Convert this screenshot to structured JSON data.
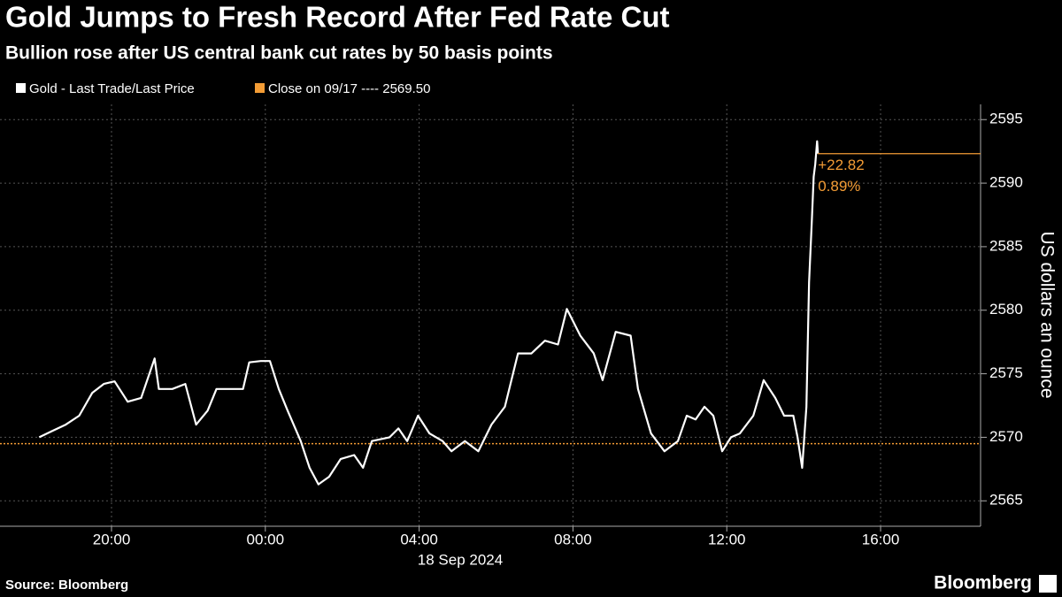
{
  "chart_data": {
    "type": "line",
    "title": "Gold Jumps to Fresh Record After Fed Rate Cut",
    "subtitle": "Bullion rose after US central bank cut rates by 50 basis points",
    "y_label": "US dollars an ounce",
    "x_label": "18 Sep 2024",
    "source": "Source: Bloomberg",
    "brand": "Bloomberg",
    "series": [
      {
        "name": "Gold - Last Trade/Last Price",
        "color": "#ffffff",
        "x": [
          -5.88,
          -5.54,
          -5.19,
          -4.84,
          -4.5,
          -4.2,
          -3.92,
          -3.58,
          -3.23,
          -2.88,
          -2.77,
          -2.42,
          -2.08,
          -1.8,
          -1.5,
          -1.27,
          -0.92,
          -0.58,
          -0.42,
          -0.12,
          0.12,
          0.35,
          0.58,
          0.92,
          1.15,
          1.38,
          1.66,
          1.96,
          2.31,
          2.54,
          2.77,
          3.23,
          3.46,
          3.69,
          3.97,
          4.27,
          4.61,
          4.84,
          5.19,
          5.54,
          5.88,
          6.23,
          6.57,
          6.92,
          7.27,
          7.61,
          7.84,
          8.19,
          8.54,
          8.77,
          9.11,
          9.5,
          9.69,
          10.03,
          10.38,
          10.73,
          10.96,
          11.19,
          11.42,
          11.65,
          11.88,
          12.11,
          12.34,
          12.69,
          12.96,
          13.26,
          13.49,
          13.73,
          13.84,
          13.96,
          14.07,
          14.14,
          14.21,
          14.26,
          14.3,
          14.35,
          14.37
        ],
        "values": [
          2570.0,
          2570.5,
          2571.0,
          2571.7,
          2573.5,
          2574.2,
          2574.4,
          2572.8,
          2573.1,
          2576.2,
          2573.8,
          2573.8,
          2574.2,
          2571.0,
          2572.1,
          2573.8,
          2573.8,
          2573.8,
          2575.9,
          2576.0,
          2576.0,
          2573.8,
          2572.1,
          2569.7,
          2567.6,
          2566.3,
          2566.9,
          2568.3,
          2568.6,
          2567.6,
          2569.7,
          2570.0,
          2570.7,
          2569.7,
          2571.7,
          2570.3,
          2569.7,
          2568.9,
          2569.7,
          2568.9,
          2571.0,
          2572.4,
          2576.6,
          2576.6,
          2577.6,
          2577.3,
          2580.1,
          2578.0,
          2576.6,
          2574.5,
          2578.3,
          2578.0,
          2573.8,
          2570.3,
          2568.9,
          2569.7,
          2571.7,
          2571.4,
          2572.4,
          2571.7,
          2568.9,
          2570.0,
          2570.3,
          2571.7,
          2574.5,
          2573.1,
          2571.7,
          2571.7,
          2570.0,
          2567.6,
          2572.4,
          2582.2,
          2587.0,
          2590.5,
          2591.5,
          2593.3,
          2592.32
        ]
      },
      {
        "name": "Close on 09/17 ---- 2569.50",
        "color": "#f39c35",
        "value": 2569.5
      }
    ],
    "annotations": [
      "+22.82",
      "0.89%"
    ],
    "xlim": [
      -6.9,
      18.6
    ],
    "xticks": [
      {
        "value": -4,
        "label": "20:00"
      },
      {
        "value": 0,
        "label": "00:00"
      },
      {
        "value": 4,
        "label": "04:00"
      },
      {
        "value": 8,
        "label": "08:00"
      },
      {
        "value": 12,
        "label": "12:00"
      },
      {
        "value": 16,
        "label": "16:00"
      }
    ],
    "ylim": [
      2563,
      2596.2
    ],
    "yticks": [
      2565,
      2570,
      2575,
      2580,
      2585,
      2590,
      2595
    ],
    "grid": true
  }
}
